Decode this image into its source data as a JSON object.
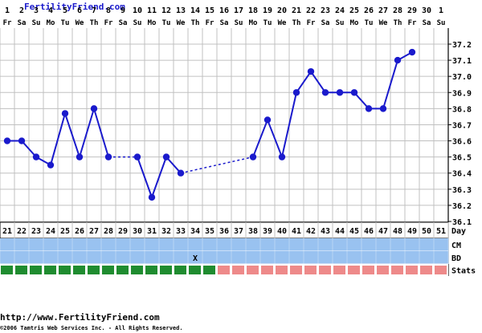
{
  "header": {
    "brand": "FertilityFriend.com"
  },
  "footer": {
    "url": "http://www.FertilityFriend.com",
    "copyright": "©2006 Tamtris Web Services Inc. - All Rights Reserved."
  },
  "colors": {
    "line": "#1a1acc",
    "grid": "#c0c0c0",
    "blue_band": "#99c2f0",
    "stats_green": "#1f8c30",
    "stats_pink": "#ee8a8a"
  },
  "chart_data": {
    "type": "line",
    "x_top": {
      "dates": [
        "1",
        "2",
        "3",
        "4",
        "5",
        "6",
        "7",
        "8",
        "9",
        "10",
        "11",
        "12",
        "13",
        "14",
        "15",
        "16",
        "17",
        "18",
        "19",
        "20",
        "21",
        "22",
        "23",
        "24",
        "25",
        "26",
        "27",
        "28",
        "29",
        "30",
        "1"
      ],
      "weekdays": [
        "Fr",
        "Sa",
        "Su",
        "Mo",
        "Tu",
        "We",
        "Th",
        "Fr",
        "Sa",
        "Su",
        "Mo",
        "Tu",
        "We",
        "Th",
        "Fr",
        "Sa",
        "Su",
        "Mo",
        "Tu",
        "We",
        "Th",
        "Fr",
        "Sa",
        "Su",
        "Mo",
        "Tu",
        "We",
        "Th",
        "Fr",
        "Sa",
        "Su"
      ]
    },
    "cycle_days": [
      "21",
      "22",
      "23",
      "24",
      "25",
      "26",
      "27",
      "28",
      "29",
      "30",
      "31",
      "32",
      "33",
      "34",
      "35",
      "36",
      "37",
      "38",
      "39",
      "40",
      "41",
      "42",
      "43",
      "44",
      "45",
      "46",
      "47",
      "48",
      "49",
      "50",
      "51"
    ],
    "row_labels": {
      "day": "Day",
      "cm": "CM",
      "bd": "BD",
      "stats": "Stats"
    },
    "y_ticks": [
      "37.2",
      "37.1",
      "37.0",
      "36.9",
      "36.8",
      "36.7",
      "36.6",
      "36.5",
      "36.4",
      "36.3",
      "36.2",
      "36.1"
    ],
    "ylim": [
      36.1,
      37.2
    ],
    "series": [
      {
        "values": [
          36.6,
          36.6,
          36.5,
          36.45,
          36.77,
          36.5,
          36.8,
          36.5,
          null,
          36.5,
          36.25,
          36.5,
          36.4,
          null,
          null,
          null,
          null,
          36.5,
          36.73,
          36.5,
          36.9,
          37.03,
          36.9,
          36.9,
          36.9,
          36.8,
          36.8,
          37.1,
          37.15,
          null,
          null
        ]
      }
    ],
    "dashed_segments": [
      [
        8,
        10
      ],
      [
        13,
        18
      ]
    ],
    "bd_marks": [
      {
        "day_index": 13,
        "mark": "X"
      }
    ],
    "stats_green_count": 15,
    "grid": true
  }
}
